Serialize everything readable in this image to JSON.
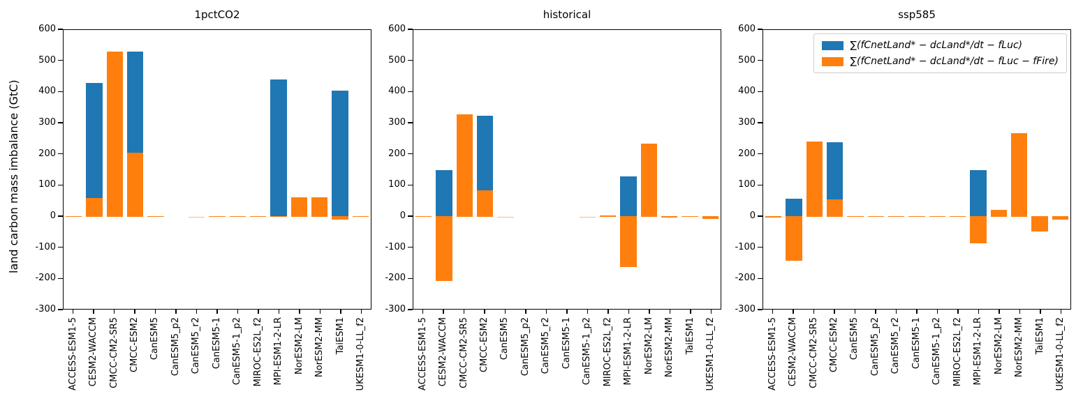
{
  "figure": {
    "ylabel": "land carbon mass imbalance (GtC)",
    "background": "#ffffff"
  },
  "colors": {
    "series_blue": "#1f77b4",
    "series_orange": "#ff7f0e",
    "axis": "#000000",
    "legend_border": "#cccccc"
  },
  "legend": {
    "position": "upper right of third subplot",
    "entries": [
      {
        "color": "#1f77b4",
        "label": "∑(fCnetLand* − dcLand*/dt − fLuc)"
      },
      {
        "color": "#ff7f0e",
        "label": "∑(fCnetLand* − dcLand*/dt − fLuc − fFire)"
      }
    ]
  },
  "chart_data": [
    {
      "type": "bar",
      "title": "1pctCO2",
      "ylabel": "land carbon mass imbalance (GtC)",
      "ylim": [
        -300,
        600
      ],
      "yticks": [
        600,
        500,
        400,
        300,
        200,
        100,
        0,
        -100,
        -200,
        -300
      ],
      "grid": false,
      "bar_style": "overlaid (orange drawn over blue, both from zero)",
      "categories": [
        "ACCESS-ESM1-5",
        "CESM2-WACCM",
        "CMCC-CM2-SR5",
        "CMCC-ESM2",
        "CanESM5",
        "CanESM5_p2",
        "CanESM5_r2",
        "CanESM5-1",
        "CanESM5-1_p2",
        "MIROC-ES2L_f2",
        "MPI-ESM1-2-LR",
        "NorESM2-LM",
        "NorESM2-MM",
        "TaiESM1",
        "UKESM1-0-LL_f2"
      ],
      "series": [
        {
          "name": "∑(fCnetLand* − dcLand*/dt − fLuc)",
          "color": "#1f77b4",
          "values": [
            0,
            430,
            0,
            530,
            0,
            0,
            0,
            0,
            0,
            0,
            440,
            0,
            0,
            405,
            0
          ]
        },
        {
          "name": "∑(fCnetLand* − dcLand*/dt − fLuc − fFire)",
          "color": "#ff7f0e",
          "values": [
            2,
            60,
            530,
            207,
            2,
            0,
            1,
            -4,
            2,
            2,
            -4,
            62,
            62,
            -12,
            2
          ]
        }
      ]
    },
    {
      "type": "bar",
      "title": "historical",
      "ylabel": "land carbon mass imbalance (GtC)",
      "ylim": [
        -300,
        600
      ],
      "yticks": [
        600,
        500,
        400,
        300,
        200,
        100,
        0,
        -100,
        -200,
        -300
      ],
      "grid": false,
      "bar_style": "overlaid (orange drawn over blue, both from zero)",
      "categories": [
        "ACCESS-ESM1-5",
        "CESM2-WACCM",
        "CMCC-CM2-SR5",
        "CMCC-ESM2",
        "CanESM5",
        "CanESM5_p2",
        "CanESM5_r2",
        "CanESM5-1",
        "CanESM5-1_p2",
        "MIROC-ES2L_f2",
        "MPI-ESM1-2-LR",
        "NorESM2-LM",
        "NorESM2-MM",
        "TaiESM1",
        "UKESM1-0-LL_f2"
      ],
      "series": [
        {
          "name": "∑(fCnetLand* − dcLand*/dt − fLuc)",
          "color": "#1f77b4",
          "values": [
            0,
            150,
            0,
            325,
            0,
            0,
            0,
            0,
            0,
            0,
            130,
            0,
            0,
            0,
            0
          ]
        },
        {
          "name": "∑(fCnetLand* − dcLand*/dt − fLuc − fFire)",
          "color": "#ff7f0e",
          "values": [
            3,
            -210,
            330,
            85,
            1,
            0,
            0,
            0,
            1,
            5,
            -165,
            235,
            -6,
            -4,
            -9
          ]
        }
      ]
    },
    {
      "type": "bar",
      "title": "ssp585",
      "ylabel": "land carbon mass imbalance (GtC)",
      "ylim": [
        -300,
        600
      ],
      "yticks": [
        600,
        500,
        400,
        300,
        200,
        100,
        0,
        -100,
        -200,
        -300
      ],
      "grid": false,
      "bar_style": "overlaid (orange drawn over blue, both from zero)",
      "categories": [
        "ACCESS-ESM1-5",
        "CESM2-WACCM",
        "CMCC-CM2-SR5",
        "CMCC-ESM2",
        "CanESM5",
        "CanESM5_p2",
        "CanESM5_r2",
        "CanESM5-1",
        "CanESM5-1_p2",
        "MIROC-ES2L_f2",
        "MPI-ESM1-2-LR",
        "NorESM2-LM",
        "NorESM2-MM",
        "TaiESM1",
        "UKESM1-0-LL_f2"
      ],
      "series": [
        {
          "name": "∑(fCnetLand* − dcLand*/dt − fLuc)",
          "color": "#1f77b4",
          "values": [
            0,
            58,
            0,
            240,
            0,
            0,
            0,
            0,
            0,
            0,
            150,
            0,
            0,
            0,
            0
          ]
        },
        {
          "name": "∑(fCnetLand* − dcLand*/dt − fLuc − fFire)",
          "color": "#ff7f0e",
          "values": [
            -5,
            -145,
            242,
            55,
            -2,
            -3,
            -3,
            -3,
            -2,
            -3,
            -88,
            22,
            268,
            -50,
            -13
          ]
        }
      ]
    }
  ]
}
